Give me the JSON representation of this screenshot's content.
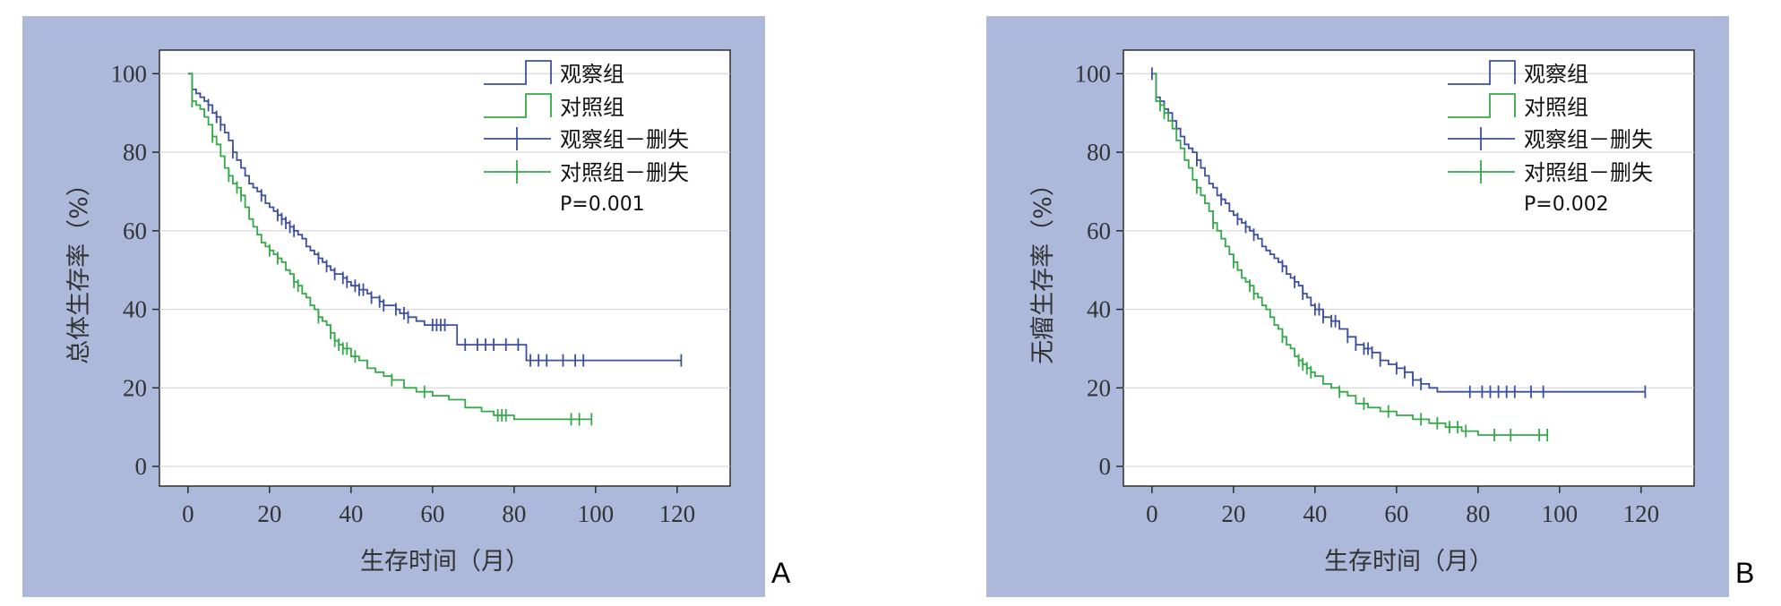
{
  "panels": [
    {
      "letter": "A",
      "chart_data": {
        "type": "line",
        "subtype": "kaplan-meier",
        "title": "",
        "xlabel": "生存时间（月）",
        "ylabel": "总体生存率（%）",
        "xlim": [
          -7,
          133
        ],
        "ylim": [
          -5,
          106
        ],
        "xticks": [
          0,
          20,
          40,
          60,
          80,
          100,
          120
        ],
        "yticks": [
          0,
          20,
          40,
          60,
          80,
          100
        ],
        "grid": "horizontal",
        "legend_placement": "top-right",
        "annotation": "P=0.001",
        "colors": {
          "observe": "#3d4fa0",
          "control": "#35a84a"
        },
        "series": [
          {
            "name": "观察组",
            "color": "#3d4fa0",
            "x": [
              0,
              1,
              2,
              3,
              4,
              5,
              6,
              7,
              8,
              9,
              10,
              11,
              12,
              13,
              14,
              15,
              16,
              17,
              18,
              19,
              20,
              21,
              22,
              23,
              24,
              25,
              26,
              27,
              28,
              29,
              30,
              31,
              32,
              33,
              34,
              35,
              36,
              37,
              38,
              39,
              40,
              41,
              42,
              43,
              44,
              45,
              46,
              47,
              48,
              49,
              50,
              51,
              52,
              53,
              54,
              55,
              56,
              57,
              58,
              59,
              60,
              62,
              64,
              66,
              70,
              74,
              78,
              82,
              83,
              90,
              100,
              110,
              121
            ],
            "y": [
              100,
              96,
              95,
              94,
              93,
              92,
              90,
              89,
              87,
              85,
              83,
              80,
              78,
              76,
              74,
              72,
              71,
              70,
              69,
              67,
              66,
              65,
              64,
              63,
              62,
              61,
              60,
              59,
              58,
              56,
              55,
              54,
              53,
              52,
              51,
              50,
              49,
              49,
              48,
              47,
              46,
              46,
              45,
              45,
              44,
              43,
              43,
              42,
              41,
              41,
              41,
              40,
              39,
              39,
              38,
              38,
              37,
              37,
              36,
              36,
              36,
              36,
              36,
              31,
              31,
              31,
              31,
              31,
              27,
              27,
              27,
              27,
              27
            ]
          },
          {
            "name": "对照组",
            "color": "#35a84a",
            "x": [
              0,
              1,
              2,
              3,
              4,
              5,
              6,
              7,
              8,
              9,
              10,
              11,
              12,
              13,
              14,
              15,
              16,
              17,
              18,
              19,
              20,
              21,
              22,
              23,
              24,
              25,
              26,
              27,
              28,
              29,
              30,
              31,
              32,
              33,
              34,
              35,
              36,
              37,
              38,
              39,
              40,
              42,
              44,
              46,
              48,
              50,
              53,
              56,
              60,
              64,
              68,
              72,
              75,
              80,
              90,
              99
            ],
            "y": [
              100,
              93,
              92,
              91,
              89,
              87,
              84,
              82,
              79,
              76,
              74,
              72,
              71,
              69,
              66,
              63,
              61,
              59,
              57,
              56,
              55,
              54,
              53,
              52,
              50,
              49,
              47,
              46,
              44,
              43,
              41,
              40,
              38,
              37,
              36,
              34,
              32,
              31,
              30,
              30,
              28,
              27,
              25,
              24,
              23,
              22,
              20,
              19,
              18,
              17,
              15,
              14,
              13,
              12,
              12,
              12
            ]
          }
        ],
        "censored": [
          {
            "name": "观察组－删失",
            "color": "#3d4fa0",
            "x": [
              5,
              7,
              8,
              11,
              18,
              22,
              23,
              24,
              25,
              26,
              32,
              34,
              36,
              38,
              39,
              41,
              42,
              43,
              45,
              47,
              48,
              51,
              53,
              54,
              60,
              61,
              62,
              63,
              68,
              71,
              73,
              75,
              78,
              81,
              84,
              86,
              88,
              92,
              95,
              97,
              121
            ]
          },
          {
            "name": "对照组－删失",
            "color": "#35a84a",
            "x": [
              1,
              6,
              10,
              12,
              13,
              20,
              22,
              26,
              27,
              32,
              35,
              36,
              37,
              38,
              39,
              41,
              50,
              58,
              76,
              77,
              78,
              94,
              96,
              99
            ]
          }
        ]
      }
    },
    {
      "letter": "B",
      "chart_data": {
        "type": "line",
        "subtype": "kaplan-meier",
        "title": "",
        "xlabel": "生存时间（月）",
        "ylabel": "无瘤生存率（%）",
        "xlim": [
          -7,
          133
        ],
        "ylim": [
          -5,
          106
        ],
        "xticks": [
          0,
          20,
          40,
          60,
          80,
          100,
          120
        ],
        "yticks": [
          0,
          20,
          40,
          60,
          80,
          100
        ],
        "grid": "horizontal",
        "legend_placement": "top-right",
        "annotation": "P=0.002",
        "colors": {
          "observe": "#3d4fa0",
          "control": "#35a84a"
        },
        "series": [
          {
            "name": "观察组",
            "color": "#3d4fa0",
            "x": [
              0,
              1,
              2,
              3,
              4,
              5,
              6,
              7,
              8,
              9,
              10,
              11,
              12,
              13,
              14,
              15,
              16,
              17,
              18,
              19,
              20,
              21,
              22,
              23,
              24,
              25,
              26,
              27,
              28,
              29,
              30,
              31,
              32,
              33,
              34,
              35,
              36,
              37,
              38,
              39,
              40,
              42,
              44,
              46,
              48,
              50,
              52,
              54,
              56,
              58,
              60,
              62,
              64,
              66,
              68,
              70,
              80,
              90,
              100,
              110,
              121
            ],
            "y": [
              100,
              94,
              93,
              91,
              90,
              88,
              86,
              84,
              82,
              81,
              80,
              78,
              76,
              74,
              72,
              71,
              69,
              68,
              67,
              65,
              64,
              63,
              62,
              61,
              60,
              59,
              58,
              56,
              55,
              54,
              53,
              52,
              51,
              49,
              48,
              47,
              46,
              44,
              43,
              41,
              40,
              38,
              37,
              35,
              33,
              31,
              30,
              29,
              27,
              26,
              25,
              24,
              22,
              21,
              20,
              19,
              19,
              19,
              19,
              19,
              19
            ]
          },
          {
            "name": "对照组",
            "color": "#35a84a",
            "x": [
              0,
              1,
              2,
              3,
              4,
              5,
              6,
              7,
              8,
              9,
              10,
              11,
              12,
              13,
              14,
              15,
              16,
              17,
              18,
              19,
              20,
              21,
              22,
              23,
              24,
              25,
              26,
              27,
              28,
              29,
              30,
              31,
              32,
              33,
              34,
              35,
              36,
              37,
              38,
              39,
              40,
              42,
              44,
              46,
              48,
              50,
              53,
              56,
              60,
              64,
              68,
              72,
              76,
              80,
              90,
              97
            ],
            "y": [
              100,
              93,
              92,
              90,
              88,
              86,
              83,
              81,
              78,
              76,
              73,
              71,
              69,
              67,
              65,
              62,
              60,
              58,
              56,
              54,
              52,
              50,
              48,
              47,
              46,
              44,
              43,
              41,
              40,
              38,
              36,
              35,
              33,
              31,
              30,
              28,
              27,
              26,
              25,
              24,
              23,
              21,
              20,
              19,
              18,
              16,
              15,
              14,
              13,
              12,
              11,
              10,
              9,
              8,
              8,
              8
            ]
          }
        ],
        "censored": [
          {
            "name": "观察组－删失",
            "color": "#3d4fa0",
            "x": [
              0,
              11,
              17,
              21,
              23,
              25,
              32,
              35,
              37,
              40,
              41,
              42,
              44,
              45,
              48,
              50,
              52,
              53,
              54,
              56,
              60,
              62,
              64,
              66,
              78,
              81,
              83,
              85,
              87,
              89,
              93,
              96,
              121
            ]
          },
          {
            "name": "对照组－删失",
            "color": "#35a84a",
            "x": [
              2,
              3,
              11,
              15,
              20,
              24,
              25,
              32,
              36,
              37,
              38,
              39,
              46,
              52,
              58,
              66,
              70,
              73,
              75,
              77,
              84,
              88,
              95,
              97
            ]
          }
        ]
      }
    }
  ]
}
